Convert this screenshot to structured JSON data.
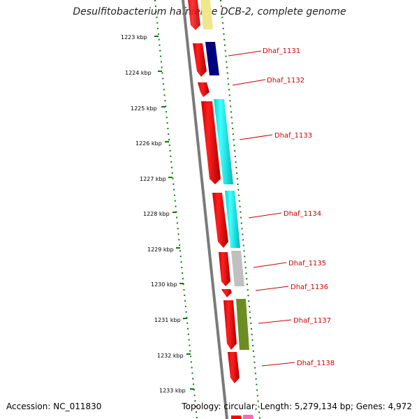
{
  "header": {
    "title": "Desulfitobacterium hafniense DCB-2, complete genome"
  },
  "footer": {
    "accession": "Accession: NC_011830",
    "topology": "Topology: circular; Length: 5,279,134 bp; Genes: 4,972"
  },
  "colors": {
    "backbone": "#7a7a7a",
    "ruler_dots": "#0a7a0a",
    "label_red": "#cc0000",
    "forward_gene": "#ff0000",
    "cyan_gene": "#00ffff",
    "navy_gene": "#000080",
    "olive_gene": "#6b8e23",
    "gray_gene": "#c0c0c0",
    "yellow_gene": "#f0e68c",
    "pink_gene": "#ff69b4"
  },
  "ruler": {
    "unit": "kbp",
    "ticks": [
      "1223 kbp",
      "1224 kbp",
      "1225 kbp",
      "1226 kbp",
      "1227 kbp",
      "1228 kbp",
      "1229 kbp",
      "1230 kbp",
      "1231 kbp",
      "1232 kbp",
      "1233 kbp"
    ]
  },
  "gene_labels": [
    "Dhaf_1131",
    "Dhaf_1132",
    "Dhaf_1133",
    "Dhaf_1134",
    "Dhaf_1135",
    "Dhaf_1136",
    "Dhaf_1137",
    "Dhaf_1138"
  ]
}
